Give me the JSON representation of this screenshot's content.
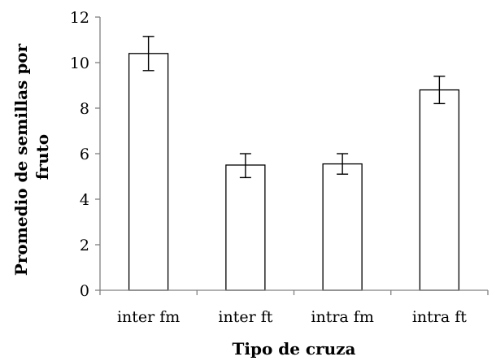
{
  "chart_data": {
    "type": "bar",
    "title": "",
    "xlabel": "Tipo de cruza",
    "ylabel_lines": [
      "Promedio de semillas por",
      "fruto"
    ],
    "categories": [
      "inter fm",
      "inter ft",
      "intra fm",
      "intra ft"
    ],
    "values": [
      10.4,
      5.5,
      5.55,
      8.8
    ],
    "error_low": [
      9.65,
      4.95,
      5.1,
      8.2
    ],
    "error_high": [
      11.15,
      6.0,
      6.0,
      9.4
    ],
    "ylim": [
      0,
      12
    ],
    "yticks": [
      0,
      2,
      4,
      6,
      8,
      10,
      12
    ],
    "grid": false,
    "legend": "none",
    "colors": {
      "bar_fill": "#ffffff",
      "bar_stroke": "#000000",
      "axis": "#808080",
      "error_bar": "#000000"
    }
  }
}
